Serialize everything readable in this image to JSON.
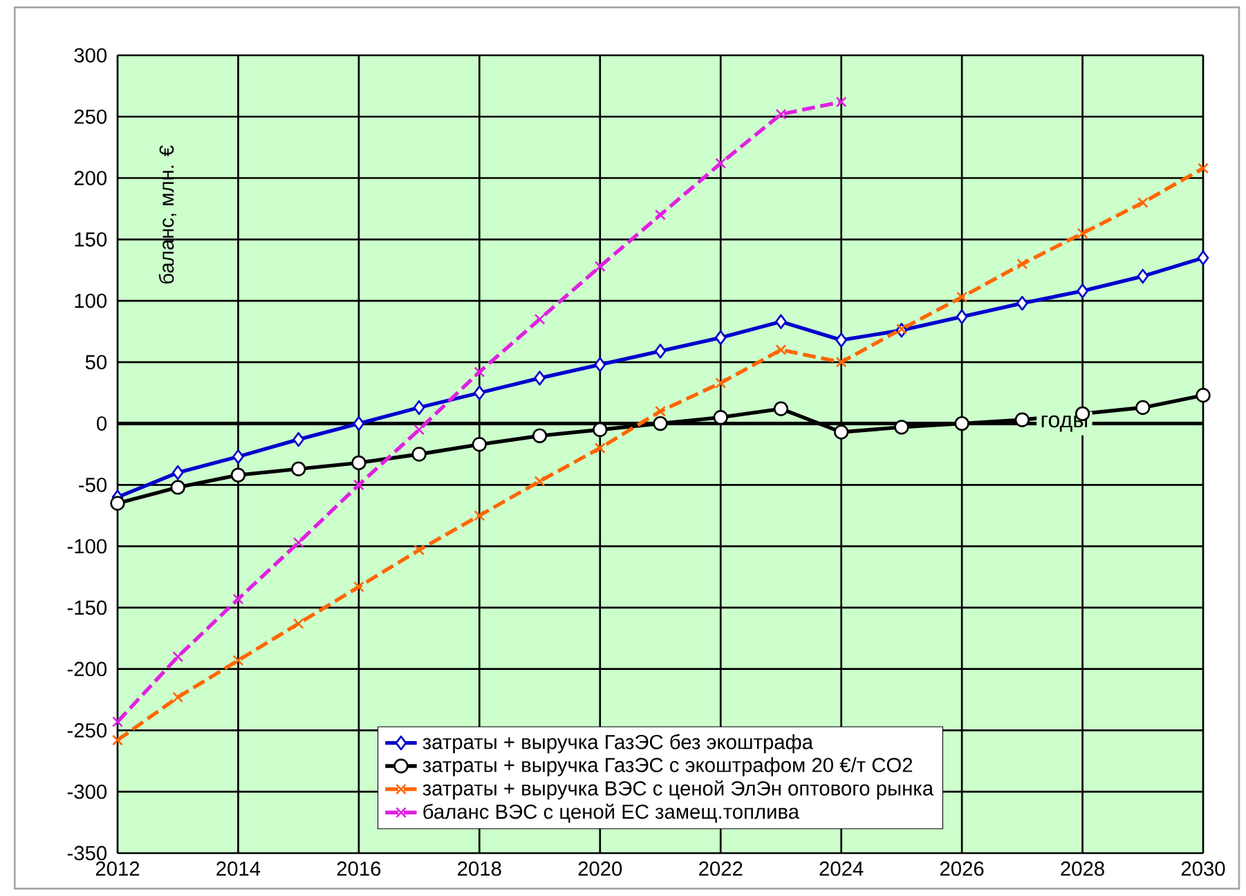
{
  "chart_data": {
    "type": "line",
    "xlabel": "годы",
    "ylabel": "баланс, млн. €",
    "x": [
      2012,
      2013,
      2014,
      2015,
      2016,
      2017,
      2018,
      2019,
      2020,
      2021,
      2022,
      2023,
      2024,
      2025,
      2026,
      2027,
      2028,
      2029,
      2030
    ],
    "series": [
      {
        "name": "затраты + выручка ГазЭС без экоштрафа",
        "color": "#0000cc",
        "marker": "diamond",
        "line_style": "solid",
        "values": [
          -60,
          -40,
          -27,
          -13,
          0,
          13,
          25,
          37,
          48,
          59,
          70,
          83,
          68,
          76,
          87,
          98,
          108,
          120,
          135
        ]
      },
      {
        "name": "затраты + выручка ГазЭС с экоштрафом 20 €/т  CO2",
        "color": "#000000",
        "marker": "circle",
        "line_style": "solid",
        "values": [
          -65,
          -52,
          -42,
          -37,
          -32,
          -25,
          -17,
          -10,
          -5,
          0,
          5,
          12,
          -7,
          -3,
          0,
          3,
          8,
          13,
          23
        ]
      },
      {
        "name": "затраты + выручка ВЭС с ценой ЭлЭн оптового рынка",
        "color": "#ff6600",
        "marker": "cross",
        "line_style": "dashed",
        "values": [
          -258,
          -223,
          -193,
          -163,
          -133,
          -103,
          -75,
          -47,
          -20,
          10,
          33,
          60,
          50,
          77,
          103,
          130,
          155,
          180,
          208
        ]
      },
      {
        "name": "баланс ВЭС с ценой ЕС замещ.топлива",
        "color": "#e020e0",
        "marker": "cross",
        "line_style": "dashed",
        "values": [
          -243,
          -190,
          -143,
          -97,
          -50,
          -5,
          42,
          85,
          128,
          170,
          212,
          252,
          262,
          null,
          null,
          null,
          null,
          null,
          null
        ]
      }
    ],
    "xlim": [
      2012,
      2030
    ],
    "xticks": [
      2012,
      2014,
      2016,
      2018,
      2020,
      2022,
      2024,
      2026,
      2028,
      2030
    ],
    "ylim": [
      -350,
      300
    ],
    "yticks": [
      -350,
      -300,
      -250,
      -200,
      -150,
      -100,
      -50,
      0,
      50,
      100,
      150,
      200,
      250,
      300
    ],
    "grid": true,
    "legend": "bottom"
  }
}
